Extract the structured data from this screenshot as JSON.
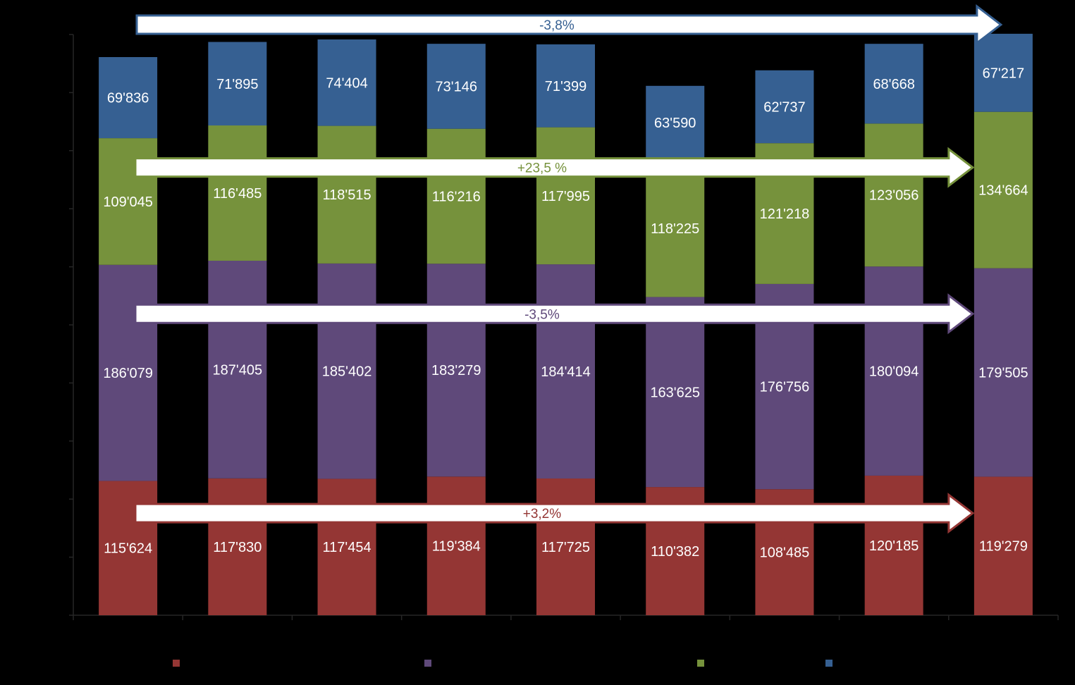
{
  "chart_data": {
    "type": "bar",
    "stacked": true,
    "title": "",
    "xlabel": "",
    "ylabel": "",
    "ylim": [
      0,
      500000
    ],
    "categories": [
      "",
      "",
      "",
      "",
      "",
      "",
      "",
      "",
      ""
    ],
    "series": [
      {
        "name": "",
        "color": "#943634",
        "values": [
          115624,
          117830,
          117454,
          119384,
          117725,
          110382,
          108485,
          120185,
          119279
        ],
        "labels": [
          "115'624",
          "117'830",
          "117'454",
          "119'384",
          "117'725",
          "110'382",
          "108'485",
          "120'185",
          "119'279"
        ]
      },
      {
        "name": "",
        "color": "#5F497A",
        "values": [
          186079,
          187405,
          185402,
          183279,
          184414,
          163625,
          176756,
          180094,
          179505
        ],
        "labels": [
          "186'079",
          "187'405",
          "185'402",
          "183'279",
          "184'414",
          "163'625",
          "176'756",
          "180'094",
          "179'505"
        ]
      },
      {
        "name": "",
        "color": "#76923C",
        "values": [
          109045,
          116485,
          118515,
          116216,
          117995,
          118225,
          121218,
          123056,
          134664
        ],
        "labels": [
          "109'045",
          "116'485",
          "118'515",
          "116'216",
          "117'995",
          "118'225",
          "121'218",
          "123'056",
          "134'664"
        ]
      },
      {
        "name": "",
        "color": "#366092",
        "values": [
          69836,
          71895,
          74404,
          73146,
          71399,
          63590,
          62737,
          68668,
          67217
        ],
        "labels": [
          "69'836",
          "71'895",
          "74'404",
          "73'146",
          "71'399",
          "63'590",
          "62'737",
          "68'668",
          "67'217"
        ]
      }
    ],
    "annotations": [
      {
        "text": "-3,8%",
        "series_index": 3,
        "color": "#366092"
      },
      {
        "text": "+23,5 %",
        "series_index": 2,
        "color": "#76923C"
      },
      {
        "text": "-3,5%",
        "series_index": 1,
        "color": "#5F497A"
      },
      {
        "text": "+3,2%",
        "series_index": 0,
        "color": "#943634"
      }
    ],
    "legend": {
      "placement": "bottom",
      "entries": [
        "",
        "",
        "",
        ""
      ]
    }
  }
}
